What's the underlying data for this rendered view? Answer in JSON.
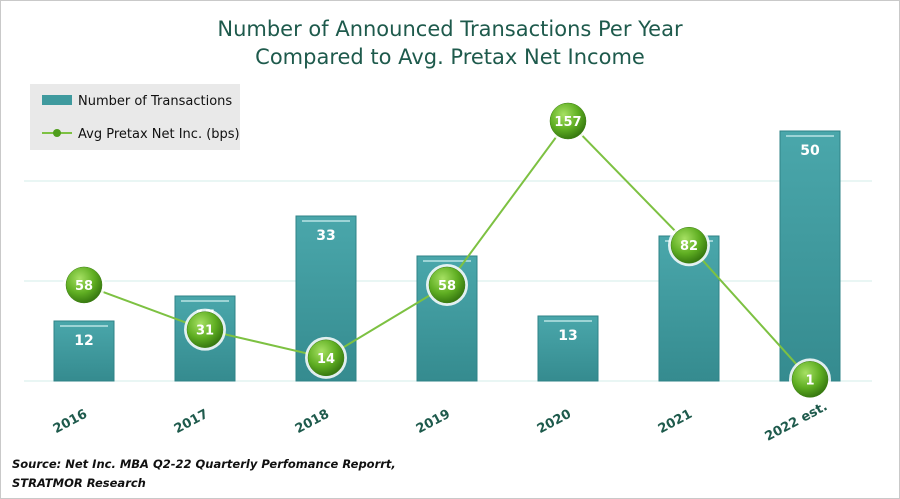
{
  "chart_data": {
    "type": "bar",
    "title_lines": [
      "Number of Announced Transactions Per Year",
      "Compared to Avg. Pretax Net Income"
    ],
    "categories": [
      "2016",
      "2017",
      "2018",
      "2019",
      "2020",
      "2021",
      "2022 est."
    ],
    "series": [
      {
        "name": "Number of Transactions",
        "type": "bar",
        "values": [
          12,
          17,
          33,
          25,
          13,
          29,
          50
        ],
        "color": "#3f9a9e"
      },
      {
        "name": "Avg Pretax Net Inc. (bps)",
        "type": "line",
        "values": [
          58,
          31,
          14,
          58,
          157,
          82,
          1
        ],
        "color": "#7dc142",
        "marker_color": "#5aa821"
      }
    ],
    "legend": "top-left",
    "grid": true,
    "source_lines": [
      "Source: Net Inc. MBA Q2-22 Quarterly Perfomance Reporrt,",
      "STRATMOR Research"
    ]
  }
}
